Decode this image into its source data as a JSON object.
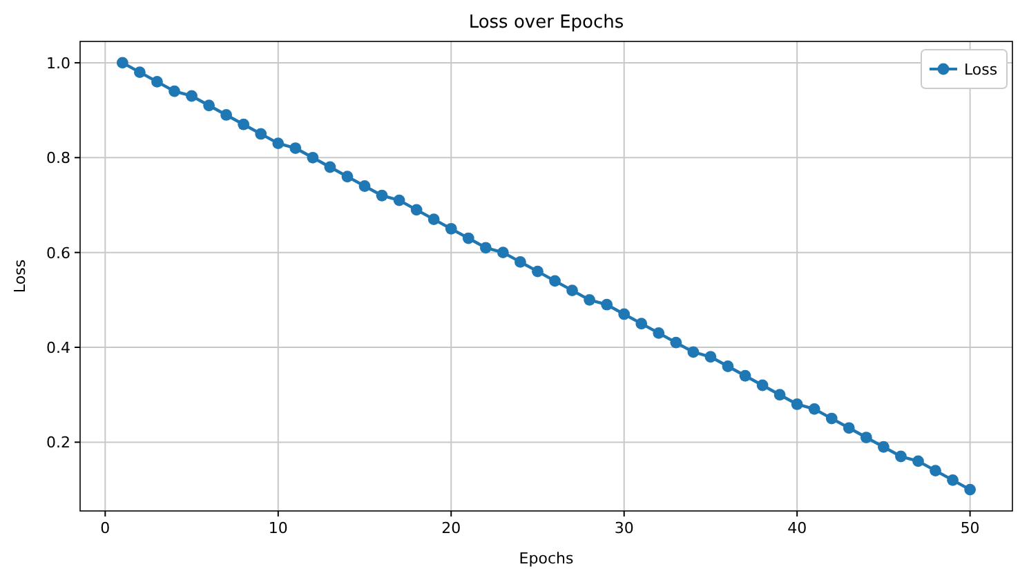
{
  "chart_data": {
    "type": "line",
    "title": "Loss over Epochs",
    "xlabel": "Epochs",
    "ylabel": "Loss",
    "x": [
      1,
      2,
      3,
      4,
      5,
      6,
      7,
      8,
      9,
      10,
      11,
      12,
      13,
      14,
      15,
      16,
      17,
      18,
      19,
      20,
      21,
      22,
      23,
      24,
      25,
      26,
      27,
      28,
      29,
      30,
      31,
      32,
      33,
      34,
      35,
      36,
      37,
      38,
      39,
      40,
      41,
      42,
      43,
      44,
      45,
      46,
      47,
      48,
      49,
      50
    ],
    "series": [
      {
        "name": "Loss",
        "color": "#1f77b4",
        "values": [
          1.0,
          0.98,
          0.96,
          0.94,
          0.93,
          0.91,
          0.89,
          0.87,
          0.85,
          0.83,
          0.82,
          0.8,
          0.78,
          0.76,
          0.74,
          0.72,
          0.71,
          0.69,
          0.67,
          0.65,
          0.63,
          0.61,
          0.6,
          0.58,
          0.56,
          0.54,
          0.52,
          0.5,
          0.49,
          0.47,
          0.45,
          0.43,
          0.41,
          0.39,
          0.38,
          0.36,
          0.34,
          0.32,
          0.3,
          0.28,
          0.27,
          0.25,
          0.23,
          0.21,
          0.19,
          0.17,
          0.16,
          0.14,
          0.12,
          0.1
        ]
      }
    ],
    "xlim": [
      -1.45,
      52.45
    ],
    "ylim": [
      0.055,
      1.045
    ],
    "xticks": [
      0,
      10,
      20,
      30,
      40,
      50
    ],
    "yticks": [
      {
        "value": 0.2,
        "label": "0.2"
      },
      {
        "value": 0.4,
        "label": "0.4"
      },
      {
        "value": 0.6,
        "label": "0.6"
      },
      {
        "value": 0.8,
        "label": "0.8"
      },
      {
        "value": 1,
        "label": "1.0"
      }
    ],
    "grid": true,
    "legend": "top right",
    "marker": "circle",
    "line_style": "solid"
  }
}
